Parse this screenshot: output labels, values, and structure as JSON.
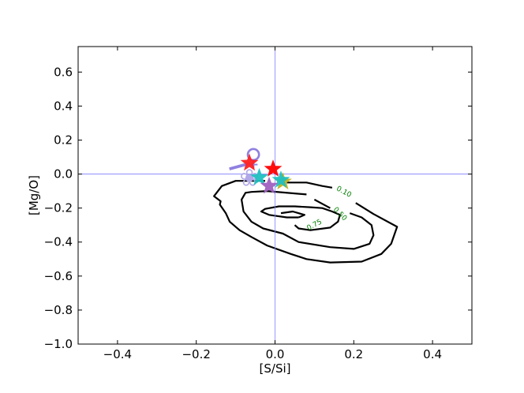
{
  "chart_data": {
    "type": "scatter",
    "xlabel": "[S/Si]",
    "ylabel": "[Mg/O]",
    "xlim": [
      -0.5,
      0.5
    ],
    "ylim": [
      -1.0,
      0.75
    ],
    "xticks": [
      -0.4,
      -0.2,
      0.0,
      0.2,
      0.4
    ],
    "xtick_labels": [
      "−0.4",
      "−0.2",
      "0.0",
      "0.2",
      "0.4"
    ],
    "yticks": [
      -1.0,
      -0.8,
      -0.6,
      -0.4,
      -0.2,
      0.0,
      0.2,
      0.4,
      0.6
    ],
    "ytick_labels": [
      "−1.0",
      "−0.8",
      "−0.6",
      "−0.4",
      "−0.2",
      "0.0",
      "0.2",
      "0.4",
      "0.6"
    ],
    "reference_lines": {
      "x": 0.0,
      "y": 0.0,
      "color": "#8080ff"
    },
    "grid": false,
    "contours": [
      {
        "level": "0.10",
        "label_at": [
          0.175,
          -0.105
        ],
        "points": [
          [
            -0.025,
            -0.04
          ],
          [
            -0.1,
            -0.04
          ],
          [
            -0.135,
            -0.07
          ],
          [
            -0.155,
            -0.13
          ],
          [
            -0.138,
            -0.16
          ],
          [
            -0.14,
            -0.18
          ],
          [
            -0.125,
            -0.23
          ],
          [
            -0.115,
            -0.28
          ],
          [
            -0.09,
            -0.33
          ],
          [
            -0.06,
            -0.37
          ],
          [
            -0.02,
            -0.42
          ],
          [
            0.04,
            -0.47
          ],
          [
            0.08,
            -0.5
          ],
          [
            0.14,
            -0.52
          ],
          [
            0.22,
            -0.515
          ],
          [
            0.27,
            -0.47
          ],
          [
            0.295,
            -0.41
          ],
          [
            0.31,
            -0.31
          ],
          [
            0.25,
            -0.235
          ],
          [
            0.205,
            -0.17
          ]
        ]
      },
      {
        "level": "0.10",
        "label_at": [
          0.175,
          -0.105
        ],
        "points": [
          [
            0.03,
            -0.05
          ],
          [
            0.08,
            -0.05
          ],
          [
            0.12,
            -0.07
          ],
          [
            0.145,
            -0.08
          ]
        ]
      },
      {
        "level": "0.50",
        "label_at": [
          0.165,
          -0.235
        ],
        "points": [
          [
            0.08,
            -0.12
          ],
          [
            -0.02,
            -0.1
          ],
          [
            -0.06,
            -0.105
          ],
          [
            -0.075,
            -0.11
          ],
          [
            -0.085,
            -0.15
          ],
          [
            -0.08,
            -0.22
          ],
          [
            -0.06,
            -0.28
          ],
          [
            -0.03,
            -0.32
          ],
          [
            0.02,
            -0.35
          ],
          [
            0.06,
            -0.4
          ],
          [
            0.14,
            -0.43
          ],
          [
            0.2,
            -0.44
          ],
          [
            0.24,
            -0.41
          ],
          [
            0.25,
            -0.36
          ],
          [
            0.245,
            -0.3
          ],
          [
            0.22,
            -0.255
          ],
          [
            0.19,
            -0.23
          ]
        ]
      },
      {
        "level": "0.50",
        "label_at": [
          0.165,
          -0.235
        ],
        "points": [
          [
            0.14,
            -0.2
          ],
          [
            0.1,
            -0.15
          ]
        ]
      },
      {
        "level": "0.75",
        "label_at": [
          0.1,
          -0.3
        ],
        "points": [
          [
            0.06,
            -0.255
          ],
          [
            0.03,
            -0.255
          ],
          [
            -0.015,
            -0.24
          ],
          [
            -0.035,
            -0.22
          ],
          [
            -0.025,
            -0.205
          ],
          [
            0.01,
            -0.19
          ],
          [
            0.05,
            -0.19
          ],
          [
            0.09,
            -0.195
          ],
          [
            0.12,
            -0.2
          ],
          [
            0.145,
            -0.22
          ],
          [
            0.165,
            -0.24
          ],
          [
            0.16,
            -0.28
          ],
          [
            0.14,
            -0.315
          ],
          [
            0.09,
            -0.33
          ],
          [
            0.06,
            -0.32
          ],
          [
            0.05,
            -0.3
          ]
        ]
      },
      {
        "level": "0.75",
        "label_at": [
          0.1,
          -0.3
        ],
        "points": [
          [
            0.015,
            -0.23
          ],
          [
            0.045,
            -0.22
          ],
          [
            0.075,
            -0.24
          ],
          [
            0.06,
            -0.255
          ]
        ]
      }
    ],
    "star_markers": [
      {
        "x": -0.005,
        "y": 0.03,
        "color": "#ff0000"
      },
      {
        "x": -0.065,
        "y": 0.065,
        "color": "#ff2020"
      },
      {
        "x": 0.02,
        "y": -0.045,
        "color": "#c0b020"
      },
      {
        "x": -0.04,
        "y": -0.02,
        "color": "#20c0c0"
      },
      {
        "x": 0.015,
        "y": -0.035,
        "color": "#20c0c0"
      },
      {
        "x": -0.015,
        "y": -0.07,
        "color": "#a060c0"
      }
    ],
    "overlay_glyphs": [
      {
        "x": -0.055,
        "y": 0.09,
        "text": "♀",
        "color": "#9080e0",
        "angle": 0
      },
      {
        "x": -0.09,
        "y": 0.048,
        "text": "—",
        "color": "#9080e0",
        "angle": -15
      },
      {
        "x": -0.065,
        "y": -0.03,
        "text": "❀",
        "color": "#b0a8e8",
        "angle": 0
      }
    ]
  }
}
